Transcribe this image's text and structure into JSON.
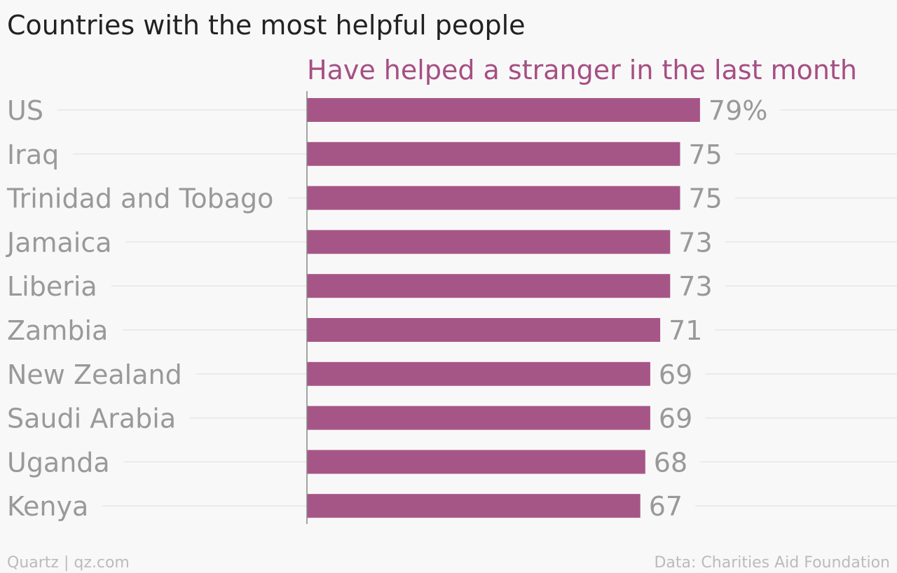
{
  "header": {
    "title": "Countries with the most helpful people"
  },
  "footer": {
    "credit": "Quartz | qz.com",
    "source": "Data: Charities Aid Foundation"
  },
  "colors": {
    "bar": "#a65686",
    "series_title": "#a64f83",
    "label": "#999999",
    "gridline": "#e6e6e6",
    "axis": "#888888"
  },
  "chart_data": {
    "type": "bar",
    "orientation": "horizontal",
    "title": "Countries with the most helpful people",
    "series_title": "Have helped a stranger in the last month",
    "categories": [
      "US",
      "Iraq",
      "Trinidad and Tobago",
      "Jamaica",
      "Liberia",
      "Zambia",
      "New Zealand",
      "Saudi Arabia",
      "Uganda",
      "Kenya"
    ],
    "values": [
      79,
      75,
      75,
      73,
      73,
      71,
      69,
      69,
      68,
      67
    ],
    "value_labels": [
      "79%",
      "75",
      "75",
      "73",
      "73",
      "71",
      "69",
      "69",
      "68",
      "67"
    ],
    "unit": "%",
    "xlim": [
      0,
      100
    ],
    "grid": true
  }
}
